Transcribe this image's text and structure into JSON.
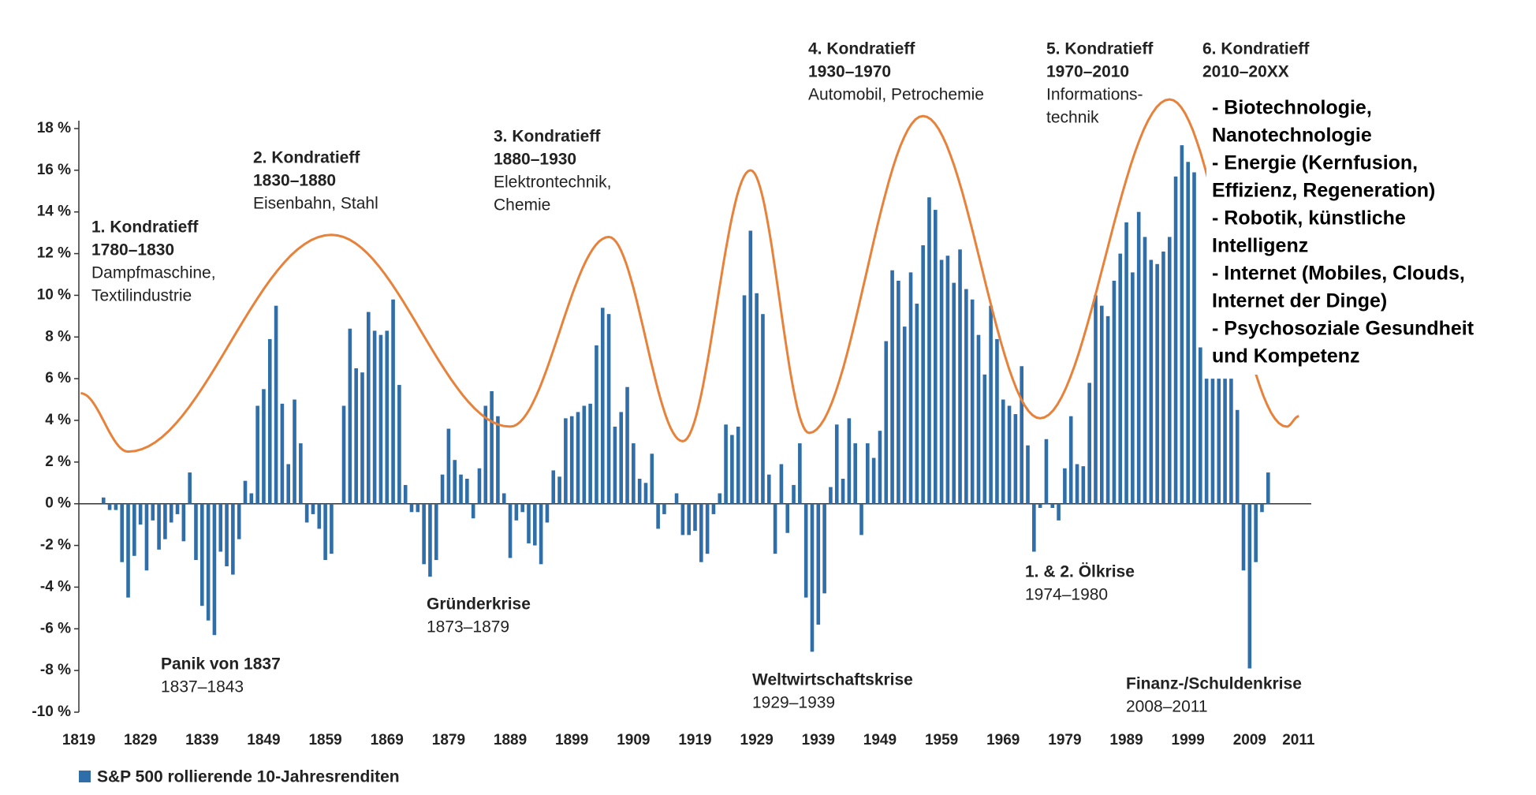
{
  "chart_data": {
    "type": "bar",
    "legend": "S&P 500 rollierende 10-Jahresrenditen",
    "color": "#2f6ea8",
    "wave_color": "#e8823a",
    "x": [
      1823,
      1824,
      1825,
      1826,
      1827,
      1828,
      1829,
      1830,
      1831,
      1832,
      1833,
      1834,
      1835,
      1836,
      1837,
      1838,
      1839,
      1840,
      1841,
      1842,
      1843,
      1844,
      1845,
      1846,
      1847,
      1848,
      1849,
      1850,
      1851,
      1852,
      1853,
      1854,
      1855,
      1856,
      1857,
      1858,
      1859,
      1860,
      1862,
      1863,
      1864,
      1865,
      1866,
      1867,
      1868,
      1869,
      1870,
      1871,
      1872,
      1873,
      1874,
      1875,
      1876,
      1877,
      1878,
      1879,
      1880,
      1881,
      1882,
      1883,
      1884,
      1885,
      1886,
      1887,
      1888,
      1889,
      1890,
      1891,
      1892,
      1893,
      1894,
      1895,
      1896,
      1897,
      1898,
      1899,
      1900,
      1901,
      1902,
      1903,
      1904,
      1905,
      1906,
      1907,
      1908,
      1909,
      1910,
      1911,
      1912,
      1913,
      1914,
      1916,
      1917,
      1918,
      1919,
      1920,
      1921,
      1922,
      1923,
      1924,
      1925,
      1926,
      1927,
      1928,
      1929,
      1930,
      1931,
      1932,
      1933,
      1934,
      1935,
      1936,
      1937,
      1938,
      1939,
      1940,
      1941,
      1942,
      1943,
      1944,
      1945,
      1946,
      1947,
      1948,
      1949,
      1950,
      1951,
      1952,
      1953,
      1954,
      1955,
      1956,
      1957,
      1958,
      1959,
      1960,
      1961,
      1962,
      1963,
      1964,
      1965,
      1966,
      1967,
      1968,
      1969,
      1970,
      1971,
      1972,
      1973,
      1974,
      1975,
      1976,
      1977,
      1978,
      1979,
      1980,
      1981,
      1982,
      1983,
      1984,
      1985,
      1986,
      1987,
      1988,
      1989,
      1990,
      1991,
      1992,
      1993,
      1994,
      1995,
      1996,
      1997,
      1998,
      1999,
      2000,
      2001,
      2002,
      2003,
      2004,
      2005,
      2006,
      2007,
      2008,
      2009,
      2010,
      2011,
      2012
    ],
    "values": [
      0.3,
      -0.3,
      -0.3,
      -2.8,
      -4.5,
      -2.5,
      -1.0,
      -3.2,
      -0.8,
      -2.2,
      -1.7,
      -0.9,
      -0.5,
      -1.8,
      1.5,
      -2.7,
      -4.9,
      -5.6,
      -6.3,
      -2.3,
      -3.0,
      -3.4,
      -1.7,
      1.1,
      0.5,
      4.7,
      5.5,
      7.9,
      9.5,
      4.8,
      1.9,
      5.0,
      2.9,
      -0.9,
      -0.5,
      -1.2,
      -2.7,
      -2.4,
      4.7,
      8.4,
      6.5,
      6.3,
      9.2,
      8.3,
      8.1,
      8.3,
      9.8,
      5.7,
      0.9,
      -0.4,
      -0.4,
      -2.9,
      -3.5,
      -2.7,
      1.4,
      3.6,
      2.1,
      1.4,
      1.2,
      -0.7,
      1.7,
      4.7,
      5.4,
      4.2,
      0.5,
      -2.6,
      -0.8,
      -0.4,
      -1.9,
      -2.0,
      -2.9,
      -0.9,
      1.6,
      1.3,
      4.1,
      4.2,
      4.4,
      4.7,
      4.8,
      7.6,
      9.4,
      9.1,
      3.7,
      4.4,
      5.6,
      2.9,
      1.2,
      1.0,
      2.4,
      -1.2,
      -0.5,
      0.5,
      -1.5,
      -1.5,
      -1.3,
      -2.8,
      -2.4,
      -0.5,
      0.5,
      3.8,
      3.3,
      3.7,
      10.0,
      13.1,
      10.1,
      9.1,
      1.4,
      -2.4,
      1.9,
      -1.4,
      0.9,
      2.9,
      -4.5,
      -7.1,
      -5.8,
      -4.3,
      0.8,
      3.8,
      1.2,
      4.1,
      2.9,
      -1.5,
      2.9,
      2.2,
      3.5,
      7.8,
      11.2,
      10.7,
      8.5,
      11.1,
      9.6,
      12.4,
      14.7,
      14.1,
      11.7,
      11.9,
      10.6,
      12.2,
      10.3,
      9.8,
      8.1,
      6.2,
      9.5,
      7.9,
      5.0,
      4.7,
      4.3,
      6.6,
      2.8,
      -2.3,
      -0.2,
      3.1,
      -0.2,
      -0.8,
      1.7,
      4.2,
      1.9,
      1.8,
      5.8,
      10.0,
      9.5,
      9.0,
      10.7,
      12.0,
      13.5,
      11.1,
      14.0,
      12.8,
      11.7,
      11.5,
      12.1,
      12.8,
      15.7,
      17.2,
      16.4,
      15.9,
      7.5,
      6.0,
      6.0,
      6.0,
      6.0,
      6.0,
      4.5,
      -3.2,
      -7.9,
      -2.8,
      -0.4,
      1.5
    ],
    "wave_x": [
      1819.3,
      1827,
      1860,
      1889,
      1905,
      1917,
      1928,
      1937.5,
      1956,
      1975,
      1996,
      2015,
      2017
    ],
    "wave_values": [
      5.3,
      2.5,
      12.9,
      3.7,
      12.8,
      3.0,
      16.0,
      3.4,
      18.6,
      4.1,
      19.4,
      3.7,
      4.2
    ],
    "xlim": [
      1819,
      2019
    ],
    "ylim": [
      -10,
      18
    ],
    "xticks": [
      1819,
      1829,
      1839,
      1849,
      1859,
      1869,
      1879,
      1889,
      1899,
      1909,
      1919,
      1929,
      1939,
      1949,
      1959,
      1969,
      1979,
      1989,
      1999,
      2009,
      2011
    ],
    "yticks": [
      {
        "value": -10,
        "label": "-10 %"
      },
      {
        "value": -8,
        "label": "-8 %"
      },
      {
        "value": -6,
        "label": "-6 %"
      },
      {
        "value": -4,
        "label": "-4 %"
      },
      {
        "value": -2,
        "label": "-2 %"
      },
      {
        "value": 0,
        "label": "0 %"
      },
      {
        "value": 2,
        "label": "2 %"
      },
      {
        "value": 4,
        "label": "4 %"
      },
      {
        "value": 6,
        "label": "6 %"
      },
      {
        "value": 8,
        "label": "8 %"
      },
      {
        "value": 10,
        "label": "10 %"
      },
      {
        "value": 12,
        "label": "12 %"
      },
      {
        "value": 14,
        "label": "14 %"
      },
      {
        "value": 16,
        "label": "16 %"
      },
      {
        "value": 18,
        "label": "18 %"
      }
    ],
    "cycles": [
      {
        "heading": [
          "1. Kondratieff",
          "1780–1830"
        ],
        "detail": [
          "Dampfmaschine,",
          "Textilindustrie"
        ]
      },
      {
        "heading": [
          "2. Kondratieff",
          "1830–1880"
        ],
        "detail": [
          "Eisenbahn, Stahl"
        ]
      },
      {
        "heading": [
          "3. Kondratieff",
          "1880–1930"
        ],
        "detail": [
          "Elektrontechnik,",
          "Chemie"
        ]
      },
      {
        "heading": [
          "4. Kondratieff",
          "1930–1970"
        ],
        "detail": [
          "Automobil, Petrochemie"
        ]
      },
      {
        "heading": [
          "5. Kondratieff",
          "1970–2010"
        ],
        "detail": [
          "Informations-",
          "technik"
        ]
      },
      {
        "heading": [
          "6. Kondratieff",
          "2010–20XX"
        ],
        "detail": []
      }
    ],
    "crises": [
      {
        "name": "Panik von 1837",
        "years": "1837–1843"
      },
      {
        "name": "Gründerkrise",
        "years": "1873–1879"
      },
      {
        "name": "Weltwirtschaftskrise",
        "years": "1929–1939"
      },
      {
        "name": "1. & 2. Ölkrise",
        "years": "1974–1980"
      },
      {
        "name": "Finanz-/Schuldenkrise",
        "years": "2008–2011"
      }
    ],
    "notes": [
      "- Biotechnologie,",
      "Nanotechnologie",
      "- Energie (Kernfusion,",
      "Effizienz, Regeneration)",
      "- Robotik, künstliche",
      "Intelligenz",
      "-  Internet (Mobiles, Clouds,",
      "Internet der Dinge)",
      "- Psychosoziale Gesundheit",
      "und Kompetenz"
    ]
  }
}
